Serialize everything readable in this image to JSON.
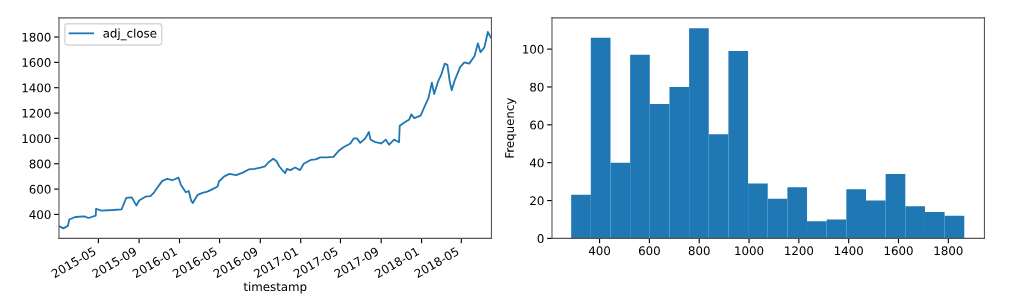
{
  "chart_data": [
    {
      "type": "line",
      "xlabel": "timestamp",
      "legend": "top left",
      "grid": false,
      "x": [
        "2015-01-02",
        "2015-01-15",
        "2015-01-29",
        "2015-02-02",
        "2015-02-20",
        "2015-03-20",
        "2015-04-01",
        "2015-04-23",
        "2015-04-24",
        "2015-05-10",
        "2015-06-15",
        "2015-07-10",
        "2015-07-24",
        "2015-08-10",
        "2015-08-24",
        "2015-09-01",
        "2015-09-20",
        "2015-10-05",
        "2015-10-15",
        "2015-10-23",
        "2015-11-10",
        "2015-11-25",
        "2015-12-10",
        "2015-12-29",
        "2016-01-05",
        "2016-01-20",
        "2016-01-29",
        "2016-02-05",
        "2016-02-10",
        "2016-02-25",
        "2016-03-10",
        "2016-03-25",
        "2016-04-10",
        "2016-04-25",
        "2016-04-29",
        "2016-05-15",
        "2016-05-31",
        "2016-06-20",
        "2016-07-10",
        "2016-07-28",
        "2016-08-15",
        "2016-09-01",
        "2016-09-15",
        "2016-09-25",
        "2016-10-10",
        "2016-10-20",
        "2016-10-28",
        "2016-11-05",
        "2016-11-15",
        "2016-11-20",
        "2016-12-01",
        "2016-12-15",
        "2016-12-30",
        "2017-01-10",
        "2017-01-31",
        "2017-02-15",
        "2017-03-01",
        "2017-03-20",
        "2017-04-10",
        "2017-04-25",
        "2017-05-10",
        "2017-05-31",
        "2017-06-10",
        "2017-06-20",
        "2017-06-30",
        "2017-07-15",
        "2017-07-26",
        "2017-07-31",
        "2017-08-15",
        "2017-09-01",
        "2017-09-15",
        "2017-09-25",
        "2017-10-10",
        "2017-10-25",
        "2017-10-27",
        "2017-11-10",
        "2017-11-25",
        "2017-12-01",
        "2017-12-10",
        "2017-12-29",
        "2018-01-10",
        "2018-01-22",
        "2018-02-01",
        "2018-02-08",
        "2018-02-20",
        "2018-03-01",
        "2018-03-12",
        "2018-03-20",
        "2018-03-27",
        "2018-04-02",
        "2018-04-10",
        "2018-04-27",
        "2018-05-10",
        "2018-05-25",
        "2018-06-10",
        "2018-06-20",
        "2018-06-28",
        "2018-07-10",
        "2018-07-20",
        "2018-07-26",
        "2018-07-31"
      ],
      "series": [
        {
          "name": "adj_close",
          "color": "#1f77b4",
          "values": [
            308,
            290,
            310,
            360,
            380,
            385,
            372,
            390,
            445,
            430,
            435,
            440,
            530,
            535,
            470,
            510,
            540,
            545,
            570,
            600,
            665,
            680,
            670,
            690,
            635,
            575,
            585,
            510,
            490,
            555,
            570,
            580,
            600,
            620,
            660,
            700,
            720,
            710,
            730,
            755,
            760,
            770,
            780,
            810,
            840,
            820,
            780,
            755,
            725,
            760,
            750,
            770,
            750,
            800,
            830,
            835,
            850,
            850,
            855,
            900,
            930,
            960,
            1000,
            1000,
            965,
            1000,
            1050,
            990,
            970,
            960,
            990,
            950,
            990,
            970,
            1100,
            1125,
            1150,
            1190,
            1160,
            1180,
            1250,
            1320,
            1440,
            1350,
            1450,
            1500,
            1590,
            1580,
            1450,
            1380,
            1450,
            1560,
            1600,
            1590,
            1650,
            1750,
            1680,
            1720,
            1840,
            1810,
            1790
          ]
        }
      ],
      "xlim": [
        "2015-01-02",
        "2018-07-31"
      ],
      "xticks": [
        {
          "value": "2015-05-01",
          "label": "2015-05"
        },
        {
          "value": "2015-09-01",
          "label": "2015-09"
        },
        {
          "value": "2016-01-01",
          "label": "2016-01"
        },
        {
          "value": "2016-05-01",
          "label": "2016-05"
        },
        {
          "value": "2016-09-01",
          "label": "2016-09"
        },
        {
          "value": "2017-01-01",
          "label": "2017-01"
        },
        {
          "value": "2017-05-01",
          "label": "2017-05"
        },
        {
          "value": "2017-09-01",
          "label": "2017-09"
        },
        {
          "value": "2018-01-01",
          "label": "2018-01"
        },
        {
          "value": "2018-05-01",
          "label": "2018-05"
        }
      ],
      "ylim": [
        211,
        1951
      ],
      "yticks": [
        400,
        600,
        800,
        1000,
        1200,
        1400,
        1600,
        1800
      ]
    },
    {
      "type": "histogram",
      "ylabel": "Frequency",
      "color": "#1f77b4",
      "grid": false,
      "legend": false,
      "bins": [
        286,
        364.9,
        443.8,
        522.7,
        601.6,
        680.5,
        759.4,
        838.3,
        917.2,
        996.1,
        1075,
        1153.9,
        1232.8,
        1311.7,
        1390.6,
        1469.5,
        1548.4,
        1627.3,
        1706.2,
        1785.1,
        1864
      ],
      "values": [
        23,
        106,
        40,
        97,
        71,
        80,
        111,
        55,
        99,
        29,
        21,
        27,
        9,
        10,
        26,
        20,
        34,
        17,
        14,
        12
      ],
      "xlim": [
        209,
        1945
      ],
      "xticks": [
        400,
        600,
        800,
        1000,
        1200,
        1400,
        1600,
        1800
      ],
      "ylim": [
        0,
        116.5
      ],
      "yticks": [
        0,
        20,
        40,
        60,
        80,
        100
      ]
    }
  ]
}
